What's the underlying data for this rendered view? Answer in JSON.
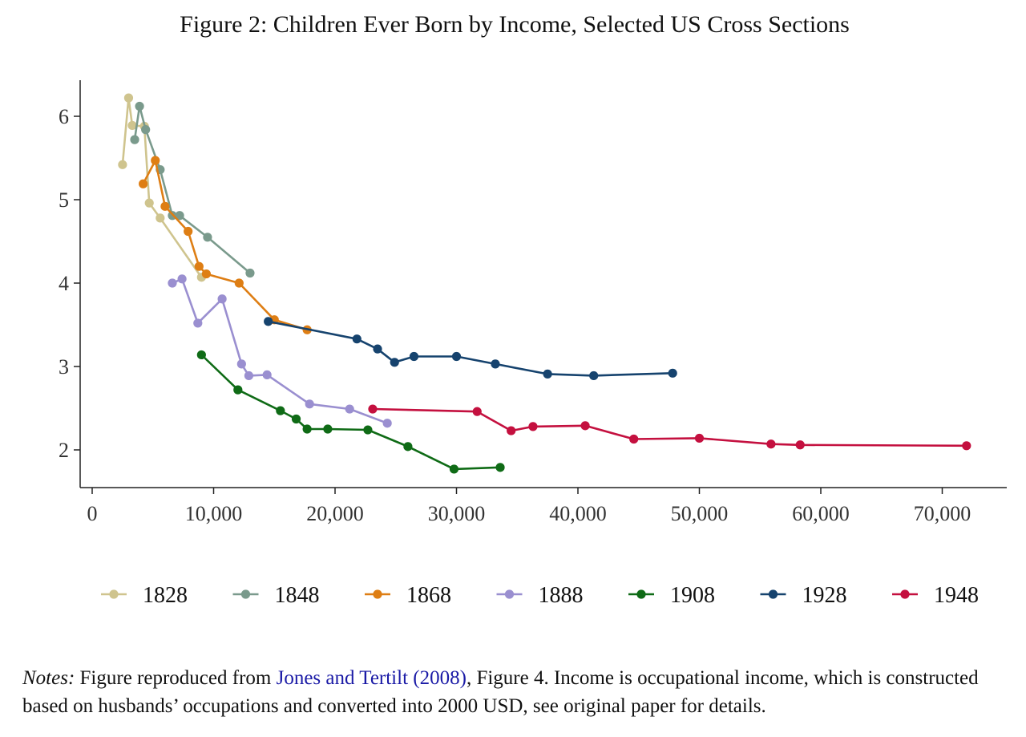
{
  "figure": {
    "title": "Figure 2: Children Ever Born by Income, Selected US Cross Sections"
  },
  "notes": {
    "lead": "Notes:",
    "before_ref": " Figure reproduced from ",
    "ref_text": "Jones and Tertilt (2008)",
    "after_ref": ", Figure 4.  Income is occupational income, which is constructed based on husbands’ occupations and converted into 2000 USD, see original paper for details."
  },
  "chart_data": {
    "type": "line",
    "title": "Figure 2: Children Ever Born by Income, Selected US Cross Sections",
    "xlabel": "",
    "ylabel": "",
    "xlim": [
      -1000,
      75000
    ],
    "ylim": [
      1.55,
      6.45
    ],
    "xticks": [
      0,
      10000,
      20000,
      30000,
      40000,
      50000,
      60000,
      70000
    ],
    "xtick_labels": [
      "0",
      "10,000",
      "20,000",
      "30,000",
      "40,000",
      "50,000",
      "60,000",
      "70,000"
    ],
    "yticks": [
      2,
      3,
      4,
      5,
      6
    ],
    "ytick_labels": [
      "2",
      "3",
      "4",
      "5",
      "6"
    ],
    "grid": false,
    "legend_position": "bottom",
    "series": [
      {
        "name": "1828",
        "color": "#cfc48e",
        "x": [
          2500,
          3000,
          3300,
          4300,
          4700,
          5600,
          9000
        ],
        "y": [
          5.42,
          6.22,
          5.89,
          5.88,
          4.96,
          4.78,
          4.07
        ]
      },
      {
        "name": "1848",
        "color": "#7a9a8c",
        "x": [
          3500,
          3900,
          4400,
          5600,
          6600,
          7200,
          9500,
          13000
        ],
        "y": [
          5.72,
          6.12,
          5.84,
          5.36,
          4.81,
          4.81,
          4.55,
          4.12
        ]
      },
      {
        "name": "1868",
        "color": "#de7e14",
        "x": [
          4200,
          5200,
          6000,
          7900,
          8800,
          9400,
          12100,
          15000,
          17700
        ],
        "y": [
          5.19,
          5.47,
          4.92,
          4.62,
          4.2,
          4.11,
          4.0,
          3.56,
          3.44
        ]
      },
      {
        "name": "1888",
        "color": "#9a8fd0",
        "x": [
          6600,
          7400,
          8700,
          10700,
          12300,
          12900,
          14400,
          17900,
          21200,
          24300
        ],
        "y": [
          4.0,
          4.05,
          3.52,
          3.81,
          3.03,
          2.89,
          2.9,
          2.55,
          2.49,
          2.32
        ]
      },
      {
        "name": "1908",
        "color": "#0f6b16",
        "x": [
          9000,
          12000,
          15500,
          16800,
          17700,
          19400,
          22700,
          26000,
          29800,
          33600
        ],
        "y": [
          3.14,
          2.72,
          2.47,
          2.37,
          2.25,
          2.25,
          2.24,
          2.04,
          1.77,
          1.79
        ]
      },
      {
        "name": "1928",
        "color": "#16436e",
        "x": [
          14500,
          21800,
          23500,
          24900,
          26500,
          30000,
          33200,
          37500,
          41300,
          47800
        ],
        "y": [
          3.54,
          3.33,
          3.21,
          3.05,
          3.12,
          3.12,
          3.03,
          2.91,
          2.89,
          2.92
        ]
      },
      {
        "name": "1948",
        "color": "#c4103f",
        "x": [
          23100,
          31700,
          34500,
          36300,
          40600,
          44600,
          50000,
          55900,
          58300,
          72000
        ],
        "y": [
          2.49,
          2.46,
          2.23,
          2.28,
          2.29,
          2.13,
          2.14,
          2.07,
          2.06,
          2.05
        ]
      }
    ]
  }
}
